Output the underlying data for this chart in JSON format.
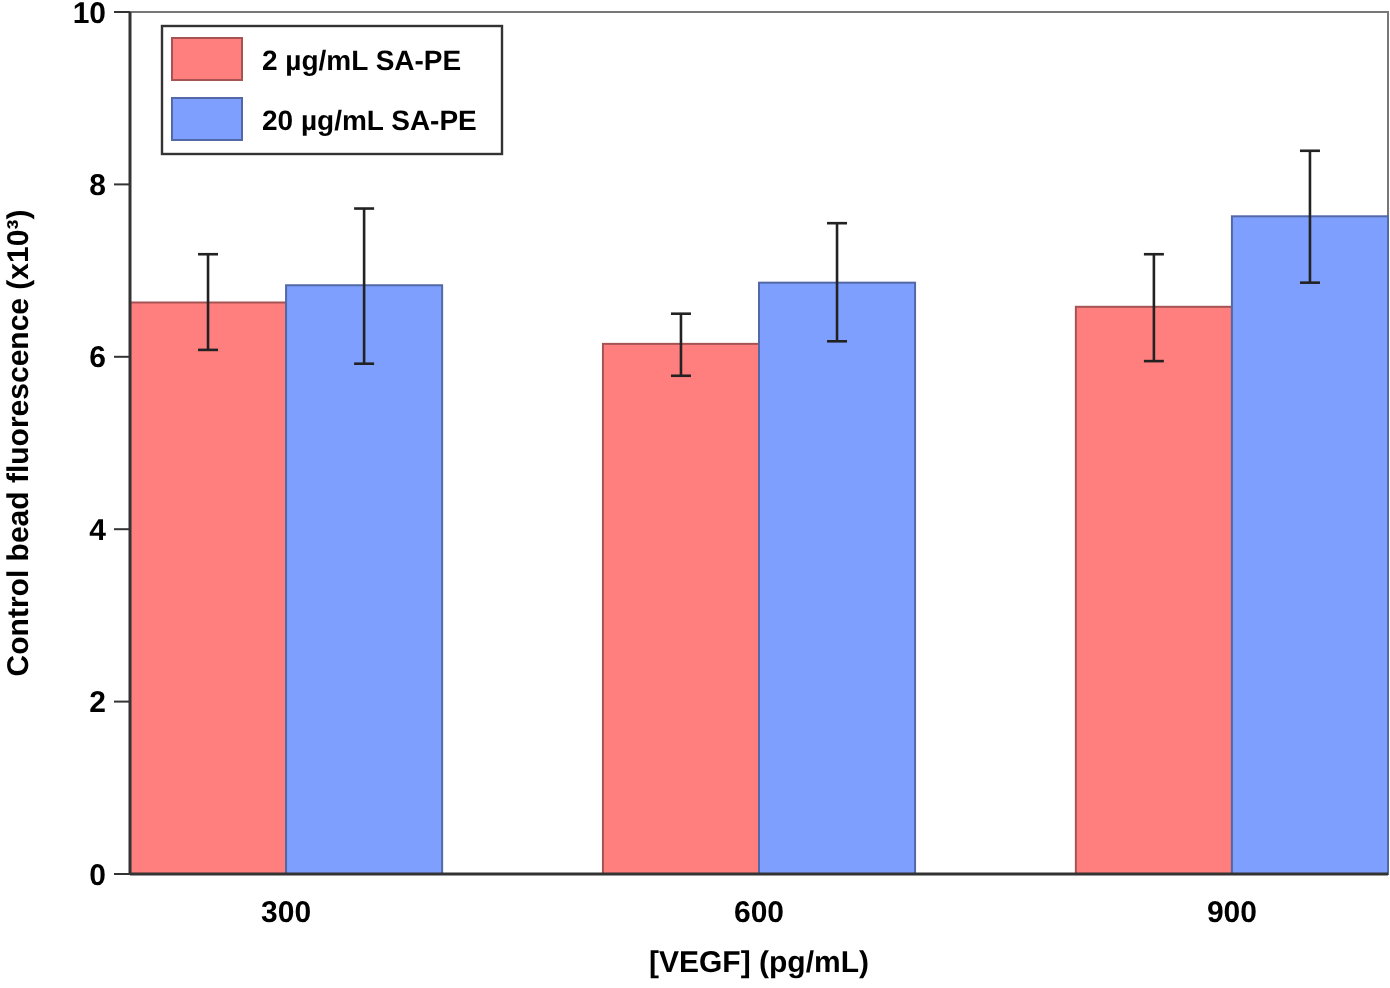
{
  "chart_data": {
    "type": "bar",
    "xlabel": "[VEGF] (pg/mL)",
    "ylabel": "Control bead fluorescence (x10³)",
    "categories": [
      "300",
      "600",
      "900"
    ],
    "series": [
      {
        "name": "2 µg/mL SA-PE",
        "color": "#ff7f7f",
        "values": [
          6.63,
          6.15,
          6.58
        ],
        "errors": [
          [
            6.08,
            7.19
          ],
          [
            5.78,
            6.5
          ],
          [
            5.95,
            7.19
          ]
        ]
      },
      {
        "name": "20 µg/mL SA-PE",
        "color": "#7f9fff",
        "values": [
          6.83,
          6.86,
          7.63
        ],
        "errors": [
          [
            5.92,
            7.72
          ],
          [
            6.18,
            7.55
          ],
          [
            6.86,
            8.39
          ]
        ]
      }
    ],
    "ylim": [
      0,
      10
    ],
    "yticks": [
      0,
      2,
      4,
      6,
      8,
      10
    ],
    "grid": false,
    "legend": "top left"
  }
}
